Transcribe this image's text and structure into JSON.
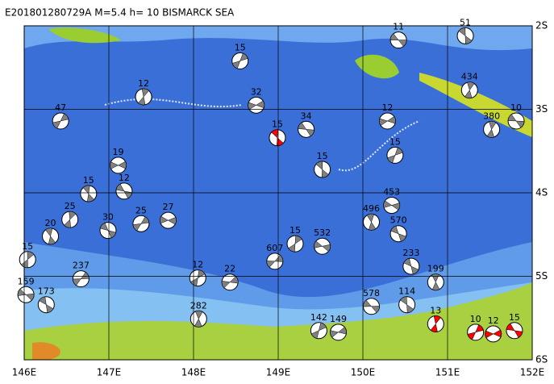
{
  "title": "E201801280729A  M=5.4  h= 10  BISMARCK SEA",
  "map": {
    "lon_range": [
      146,
      152
    ],
    "lat_range": [
      2,
      6
    ],
    "lon_ticks": [
      {
        "value": 146,
        "label": "146E"
      },
      {
        "value": 147,
        "label": "147E"
      },
      {
        "value": 148,
        "label": "148E"
      },
      {
        "value": 149,
        "label": "149E"
      },
      {
        "value": 150,
        "label": "150E"
      },
      {
        "value": 151,
        "label": "151E"
      },
      {
        "value": 152,
        "label": "152E"
      }
    ],
    "lat_ticks": [
      {
        "value": 2,
        "label": "2S"
      },
      {
        "value": 3,
        "label": "3S"
      },
      {
        "value": 4,
        "label": "4S"
      },
      {
        "value": 5,
        "label": "5S"
      },
      {
        "value": 6,
        "label": "6S"
      }
    ],
    "grid": true,
    "mechanism_color": "#808080",
    "highlight_color": "#ff0000"
  },
  "events": [
    {
      "lon": 150.42,
      "lat": 2.17,
      "depth": 11
    },
    {
      "lon": 151.21,
      "lat": 2.12,
      "depth": 51
    },
    {
      "lon": 151.26,
      "lat": 2.77,
      "depth": 434
    },
    {
      "lon": 148.55,
      "lat": 2.42,
      "depth": 15
    },
    {
      "lon": 148.74,
      "lat": 2.95,
      "depth": 32
    },
    {
      "lon": 149.33,
      "lat": 3.24,
      "depth": 34
    },
    {
      "lon": 148.99,
      "lat": 3.34,
      "depth": 15,
      "highlight": true
    },
    {
      "lon": 147.41,
      "lat": 2.85,
      "depth": 12
    },
    {
      "lon": 146.43,
      "lat": 3.14,
      "depth": 47
    },
    {
      "lon": 147.11,
      "lat": 3.67,
      "depth": 19
    },
    {
      "lon": 147.18,
      "lat": 3.98,
      "depth": 12
    },
    {
      "lon": 146.76,
      "lat": 4.01,
      "depth": 15
    },
    {
      "lon": 146.54,
      "lat": 4.32,
      "depth": 25
    },
    {
      "lon": 147.38,
      "lat": 4.37,
      "depth": 25
    },
    {
      "lon": 147.7,
      "lat": 4.33,
      "depth": 27
    },
    {
      "lon": 146.99,
      "lat": 4.45,
      "depth": 30
    },
    {
      "lon": 146.31,
      "lat": 4.52,
      "depth": 20
    },
    {
      "lon": 146.04,
      "lat": 4.8,
      "depth": 15
    },
    {
      "lon": 146.67,
      "lat": 5.03,
      "depth": 237
    },
    {
      "lon": 150.34,
      "lat": 4.15,
      "depth": 453
    },
    {
      "lon": 150.42,
      "lat": 4.49,
      "depth": 570
    },
    {
      "lon": 150.1,
      "lat": 4.35,
      "depth": 496
    },
    {
      "lon": 149.2,
      "lat": 4.61,
      "depth": 15
    },
    {
      "lon": 148.96,
      "lat": 4.82,
      "depth": 607
    },
    {
      "lon": 149.52,
      "lat": 4.64,
      "depth": 532
    },
    {
      "lon": 150.57,
      "lat": 4.88,
      "depth": 233
    },
    {
      "lon": 150.86,
      "lat": 5.07,
      "depth": 199
    },
    {
      "lon": 148.05,
      "lat": 5.02,
      "depth": 12
    },
    {
      "lon": 148.43,
      "lat": 5.07,
      "depth": 22
    },
    {
      "lon": 146.02,
      "lat": 5.22,
      "depth": 159
    },
    {
      "lon": 146.26,
      "lat": 5.34,
      "depth": 173
    },
    {
      "lon": 148.06,
      "lat": 5.51,
      "depth": 282
    },
    {
      "lon": 149.48,
      "lat": 5.65,
      "depth": 142
    },
    {
      "lon": 149.71,
      "lat": 5.67,
      "depth": 149
    },
    {
      "lon": 150.1,
      "lat": 5.36,
      "depth": 578
    },
    {
      "lon": 150.52,
      "lat": 5.34,
      "depth": 114
    },
    {
      "lon": 151.52,
      "lat": 3.24,
      "depth": 380
    },
    {
      "lon": 150.38,
      "lat": 3.55,
      "depth": 15
    },
    {
      "lon": 150.29,
      "lat": 3.14,
      "depth": 12
    },
    {
      "lon": 151.81,
      "lat": 3.14,
      "depth": 10
    },
    {
      "lon": 149.52,
      "lat": 3.72,
      "depth": 15
    },
    {
      "lon": 150.86,
      "lat": 5.57,
      "depth": 13,
      "highlight": true
    },
    {
      "lon": 151.33,
      "lat": 5.67,
      "depth": 10,
      "highlight": true
    },
    {
      "lon": 151.54,
      "lat": 5.69,
      "depth": 12,
      "highlight": true
    },
    {
      "lon": 151.79,
      "lat": 5.65,
      "depth": 15,
      "highlight": true
    }
  ]
}
